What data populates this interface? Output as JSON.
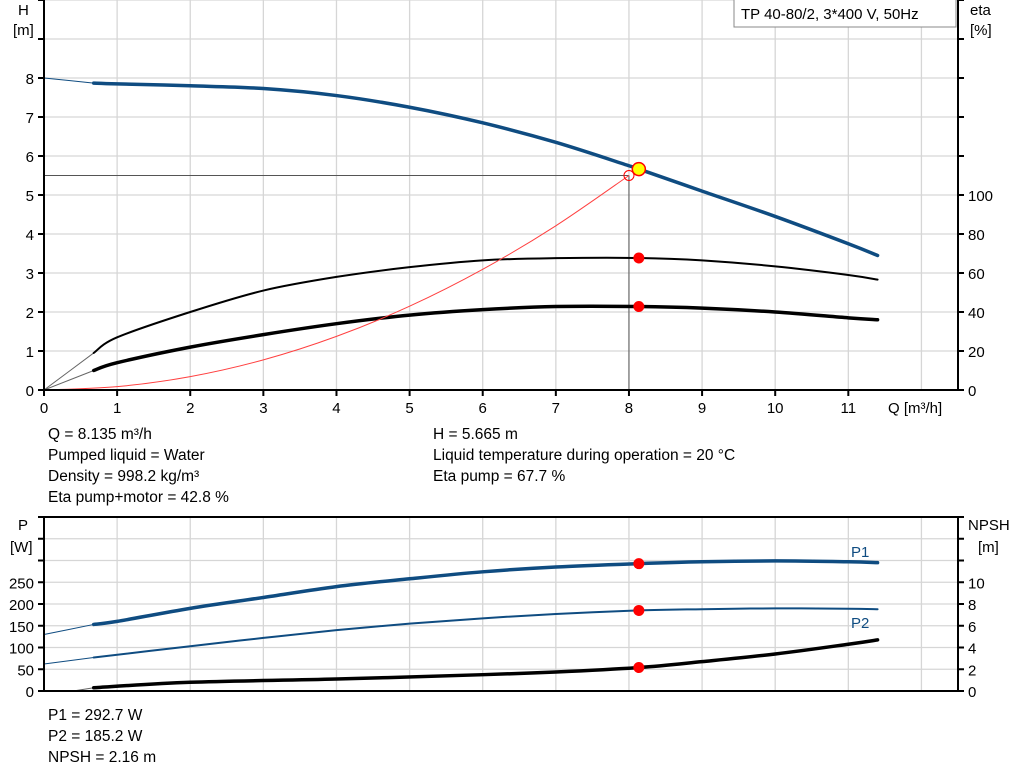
{
  "chart_data": [
    {
      "type": "line",
      "title": "TP 40-80/2, 3*400 V, 50Hz",
      "xlabel": "Q [m³/h]",
      "ylabel_left": [
        "H",
        "[m]"
      ],
      "ylabel_right": [
        "eta",
        "[%]"
      ],
      "xlim": [
        0,
        12.5
      ],
      "ylim_left": [
        0,
        10
      ],
      "ylim_right": [
        0,
        200
      ],
      "x_ticks": [
        0,
        1,
        2,
        3,
        4,
        5,
        6,
        7,
        8,
        9,
        10,
        11
      ],
      "y_ticks_left": [
        0,
        1,
        2,
        3,
        4,
        5,
        6,
        7,
        8
      ],
      "y_ticks_right": [
        0,
        20,
        40,
        60,
        80,
        100
      ],
      "grid": true,
      "series": [
        {
          "key": "H",
          "axis": "left",
          "color": "#0f4c81",
          "width": 3.5,
          "extension": [
            [
              0,
              8.0
            ],
            [
              0.68,
              7.87
            ]
          ],
          "points": [
            [
              0.68,
              7.87
            ],
            [
              1,
              7.85
            ],
            [
              2,
              7.8
            ],
            [
              3,
              7.73
            ],
            [
              4,
              7.55
            ],
            [
              5,
              7.25
            ],
            [
              6,
              6.85
            ],
            [
              7,
              6.35
            ],
            [
              8,
              5.75
            ],
            [
              8.135,
              5.665
            ],
            [
              9,
              5.1
            ],
            [
              10,
              4.45
            ],
            [
              11,
              3.75
            ],
            [
              11.4,
              3.45
            ]
          ]
        },
        {
          "key": "eta_pump",
          "axis": "right",
          "color": "#000000",
          "width": 2,
          "extension": [
            [
              0,
              0
            ],
            [
              0.68,
              19
            ]
          ],
          "points": [
            [
              0.68,
              19
            ],
            [
              1,
              27
            ],
            [
              2,
              40
            ],
            [
              3,
              51
            ],
            [
              4,
              58
            ],
            [
              5,
              63
            ],
            [
              6,
              66.5
            ],
            [
              7,
              67.6
            ],
            [
              8.135,
              67.7
            ],
            [
              9,
              66.5
            ],
            [
              10,
              63.4
            ],
            [
              11,
              59
            ],
            [
              11.4,
              56.6
            ]
          ]
        },
        {
          "key": "eta_pump_motor",
          "axis": "right",
          "color": "#000000",
          "width": 3.5,
          "extension": [
            [
              0,
              0
            ],
            [
              0.68,
              10
            ]
          ],
          "points": [
            [
              0.68,
              10
            ],
            [
              1,
              14
            ],
            [
              2,
              22
            ],
            [
              3,
              28.4
            ],
            [
              4,
              34
            ],
            [
              5,
              38.4
            ],
            [
              6,
              41.2
            ],
            [
              7,
              42.8
            ],
            [
              8.135,
              42.8
            ],
            [
              9,
              42
            ],
            [
              10,
              40
            ],
            [
              11,
              37
            ],
            [
              11.4,
              36
            ]
          ]
        },
        {
          "key": "system_curve",
          "axis": "left",
          "color": "#ff4040",
          "width": 1,
          "points": [
            [
              0,
              0
            ],
            [
              1,
              0.086
            ],
            [
              2,
              0.344
            ],
            [
              3,
              0.773
            ],
            [
              4,
              1.375
            ],
            [
              5,
              2.148
            ],
            [
              6,
              3.094
            ],
            [
              7,
              4.211
            ],
            [
              8,
              5.5
            ]
          ]
        }
      ],
      "duty_point": {
        "Q": 8.135,
        "H": 5.665,
        "eta_pump": 67.7,
        "eta_pump_motor": 42.8
      },
      "required_point": {
        "Q": 8.0,
        "H": 5.5
      }
    },
    {
      "type": "line",
      "ylabel_left": [
        "P",
        "[W]"
      ],
      "ylabel_right": [
        "NPSH",
        "[m]"
      ],
      "xlim": [
        0,
        12.5
      ],
      "ylim_left": [
        0,
        400
      ],
      "ylim_right": [
        0,
        16
      ],
      "y_ticks_left": [
        0,
        50,
        100,
        150,
        200,
        250
      ],
      "y_ticks_right": [
        0,
        2,
        4,
        6,
        8,
        10
      ],
      "grid": true,
      "series": [
        {
          "key": "P1",
          "name": "P1",
          "axis": "left",
          "color": "#0f4c81",
          "width": 3.5,
          "extension": [
            [
              0,
              130
            ],
            [
              0.68,
              153
            ]
          ],
          "points": [
            [
              0.68,
              153
            ],
            [
              1,
              160
            ],
            [
              2,
              190
            ],
            [
              3,
              215
            ],
            [
              4,
              240
            ],
            [
              5,
              258
            ],
            [
              6,
              274
            ],
            [
              7,
              285
            ],
            [
              8.135,
              292.7
            ],
            [
              9,
              297
            ],
            [
              10,
              299
            ],
            [
              11,
              297
            ],
            [
              11.4,
              295
            ]
          ]
        },
        {
          "key": "P2",
          "name": "P2",
          "axis": "left",
          "color": "#0f4c81",
          "width": 2,
          "extension": [
            [
              0,
              62
            ],
            [
              0.68,
              77
            ]
          ],
          "points": [
            [
              0.68,
              77
            ],
            [
              2,
              103
            ],
            [
              3,
              122
            ],
            [
              4,
              140
            ],
            [
              5,
              155
            ],
            [
              6,
              167
            ],
            [
              7,
              177
            ],
            [
              8.135,
              185.2
            ],
            [
              9,
              188
            ],
            [
              10,
              190
            ],
            [
              11,
              189
            ],
            [
              11.4,
              188
            ]
          ]
        },
        {
          "key": "NPSH",
          "axis": "right",
          "color": "#000000",
          "width": 3.5,
          "extension": [
            [
              0.4,
              0
            ],
            [
              0.68,
              0.3
            ]
          ],
          "points": [
            [
              0.68,
              0.3
            ],
            [
              2,
              0.8
            ],
            [
              4,
              1.1
            ],
            [
              6,
              1.5
            ],
            [
              7,
              1.75
            ],
            [
              8.135,
              2.16
            ],
            [
              9,
              2.7
            ],
            [
              10,
              3.4
            ],
            [
              11,
              4.3
            ],
            [
              11.4,
              4.7
            ]
          ]
        }
      ],
      "duty_point": {
        "Q": 8.135,
        "P1": 292.7,
        "P2": 185.2,
        "NPSH": 2.16
      }
    }
  ],
  "colors": {
    "point": "#ff0000",
    "duty_fill": "#ffff00",
    "curve_blue": "#0f4c81"
  },
  "info_top_left": [
    "Q = 8.135 m³/h",
    "Pumped liquid = Water",
    "Density = 998.2 kg/m³",
    "Eta pump+motor = 42.8 %"
  ],
  "info_top_right": [
    "H = 5.665 m",
    "Liquid temperature during operation = 20 °C",
    "Eta pump = 67.7 %"
  ],
  "info_bottom": [
    "P1 = 292.7 W",
    "P2 = 185.2 W",
    "NPSH = 2.16 m"
  ]
}
